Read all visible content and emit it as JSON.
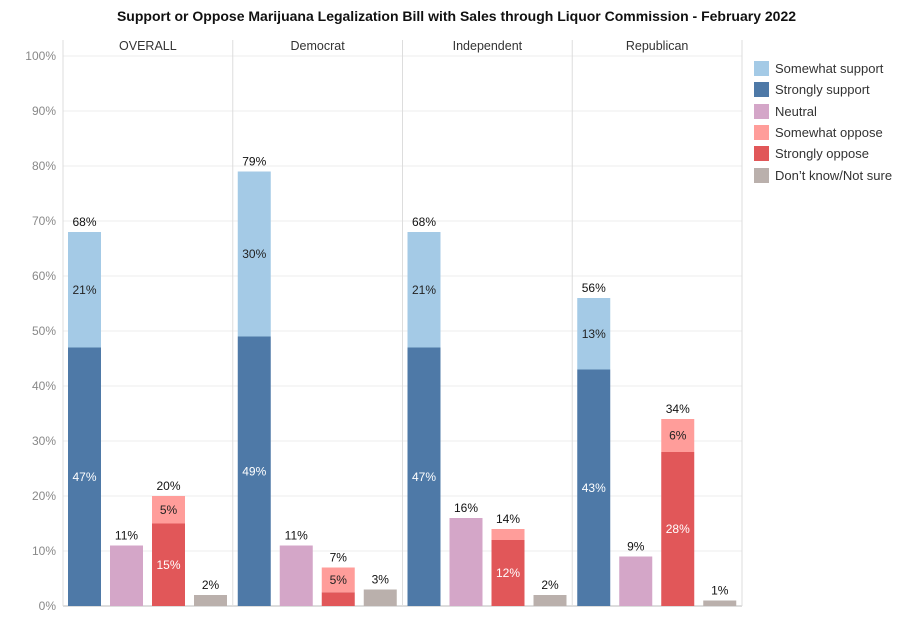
{
  "chart_data": {
    "type": "bar",
    "stacked": true,
    "title": "Support or Oppose Marijuana Legalization Bill with Sales through Liquor Commission - February 2022",
    "ylim": [
      0,
      100
    ],
    "y_ticks": [
      "0%",
      "10%",
      "20%",
      "30%",
      "40%",
      "50%",
      "60%",
      "70%",
      "80%",
      "90%",
      "100%"
    ],
    "grid": true,
    "legend_position": "right",
    "legend": [
      {
        "key": "somewhat_support",
        "label": "Somewhat support",
        "color": "#a4cae6"
      },
      {
        "key": "strongly_support",
        "label": "Strongly support",
        "color": "#4e79a7"
      },
      {
        "key": "neutral",
        "label": "Neutral",
        "color": "#d4a6c8"
      },
      {
        "key": "somewhat_oppose",
        "label": "Somewhat oppose",
        "color": "#ff9d9a"
      },
      {
        "key": "strongly_oppose",
        "label": "Strongly oppose",
        "color": "#e15759"
      },
      {
        "key": "dont_know",
        "label": "Don’t know/Not sure",
        "color": "#bab0ac"
      }
    ],
    "panels": [
      {
        "name": "OVERALL",
        "bars": [
          {
            "segments": [
              {
                "key": "strongly_support",
                "value": 47,
                "label": "47%"
              },
              {
                "key": "somewhat_support",
                "value": 21,
                "label": "21%"
              }
            ],
            "total": 68,
            "total_label": "68%"
          },
          {
            "segments": [
              {
                "key": "neutral",
                "value": 11
              }
            ],
            "total": 11,
            "total_label": "11%"
          },
          {
            "segments": [
              {
                "key": "strongly_oppose",
                "value": 15,
                "label": "15%"
              },
              {
                "key": "somewhat_oppose",
                "value": 5,
                "label": "5%"
              }
            ],
            "total": 20,
            "total_label": "20%"
          },
          {
            "segments": [
              {
                "key": "dont_know",
                "value": 2
              }
            ],
            "total": 2,
            "total_label": "2%"
          }
        ]
      },
      {
        "name": "Democrat",
        "bars": [
          {
            "segments": [
              {
                "key": "strongly_support",
                "value": 49,
                "label": "49%"
              },
              {
                "key": "somewhat_support",
                "value": 30,
                "label": "30%"
              }
            ],
            "total": 79,
            "total_label": "79%"
          },
          {
            "segments": [
              {
                "key": "neutral",
                "value": 11
              }
            ],
            "total": 11,
            "total_label": "11%"
          },
          {
            "segments": [
              {
                "key": "strongly_oppose",
                "value": 2.5
              },
              {
                "key": "somewhat_oppose",
                "value": 4.5,
                "label": "5%"
              }
            ],
            "total": 7,
            "total_label": "7%"
          },
          {
            "segments": [
              {
                "key": "dont_know",
                "value": 3
              }
            ],
            "total": 3,
            "total_label": "3%"
          }
        ]
      },
      {
        "name": "Independent",
        "bars": [
          {
            "segments": [
              {
                "key": "strongly_support",
                "value": 47,
                "label": "47%"
              },
              {
                "key": "somewhat_support",
                "value": 21,
                "label": "21%"
              }
            ],
            "total": 68,
            "total_label": "68%"
          },
          {
            "segments": [
              {
                "key": "neutral",
                "value": 16
              }
            ],
            "total": 16,
            "total_label": "16%"
          },
          {
            "segments": [
              {
                "key": "strongly_oppose",
                "value": 12,
                "label": "12%"
              },
              {
                "key": "somewhat_oppose",
                "value": 2
              }
            ],
            "total": 14,
            "total_label": "14%"
          },
          {
            "segments": [
              {
                "key": "dont_know",
                "value": 2
              }
            ],
            "total": 2,
            "total_label": "2%"
          }
        ]
      },
      {
        "name": "Republican",
        "bars": [
          {
            "segments": [
              {
                "key": "strongly_support",
                "value": 43,
                "label": "43%"
              },
              {
                "key": "somewhat_support",
                "value": 13,
                "label": "13%"
              }
            ],
            "total": 56,
            "total_label": "56%"
          },
          {
            "segments": [
              {
                "key": "neutral",
                "value": 9
              }
            ],
            "total": 9,
            "total_label": "9%"
          },
          {
            "segments": [
              {
                "key": "strongly_oppose",
                "value": 28,
                "label": "28%"
              },
              {
                "key": "somewhat_oppose",
                "value": 6,
                "label": "6%"
              }
            ],
            "total": 34,
            "total_label": "34%"
          },
          {
            "segments": [
              {
                "key": "dont_know",
                "value": 1
              }
            ],
            "total": 1,
            "total_label": "1%"
          }
        ]
      }
    ]
  }
}
